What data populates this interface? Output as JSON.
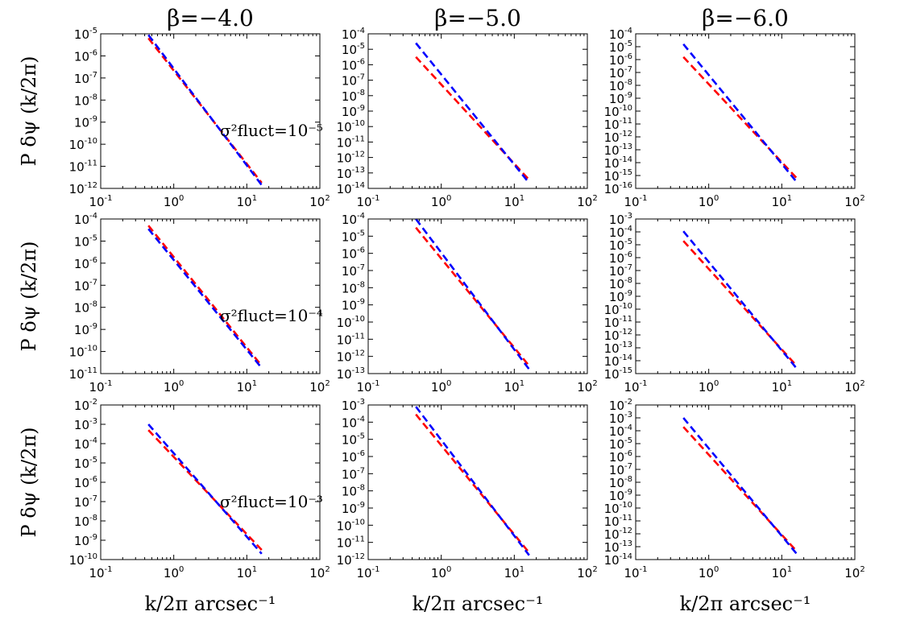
{
  "figure": {
    "column_titles": [
      "β=−4.0",
      "β=−5.0",
      "β=−6.0"
    ],
    "row_annotations": [
      "σ²fluct=10⁻⁵",
      "σ²fluct=10⁻⁴",
      "σ²fluct=10⁻³"
    ],
    "ylabel": "P δψ (k/2π)",
    "xlabel": "k/2π arcsec⁻¹"
  },
  "colors": {
    "red_series": "#ff0000",
    "blue_series": "#0000ff"
  },
  "chart_data": [
    {
      "type": "line",
      "row": 0,
      "col": 0,
      "xscale": "log",
      "yscale": "log",
      "xlim": [
        0.1,
        100
      ],
      "ylim_exp": [
        -12,
        -5
      ],
      "xtick_exps": [
        -1,
        0,
        1,
        2
      ],
      "ytick_exps": [
        -12,
        -11,
        -10,
        -9,
        -8,
        -7,
        -6,
        -5
      ],
      "annotation": "σ²fluct=10⁻⁵",
      "series": [
        {
          "color": "red",
          "x": [
            0.45,
            16
          ],
          "y_exp": [
            -5.2,
            -11.75
          ]
        },
        {
          "color": "blue",
          "x": [
            0.45,
            16
          ],
          "y_exp": [
            -5.05,
            -11.85
          ]
        }
      ]
    },
    {
      "type": "line",
      "row": 0,
      "col": 1,
      "xscale": "log",
      "yscale": "log",
      "xlim": [
        0.1,
        100
      ],
      "ylim_exp": [
        -14,
        -4
      ],
      "xtick_exps": [
        -1,
        0,
        1,
        2
      ],
      "ytick_exps": [
        -14,
        -13,
        -12,
        -11,
        -10,
        -9,
        -8,
        -7,
        -6,
        -5,
        -4
      ],
      "series": [
        {
          "color": "red",
          "x": [
            0.45,
            16
          ],
          "y_exp": [
            -5.5,
            -13.45
          ]
        },
        {
          "color": "blue",
          "x": [
            0.45,
            16
          ],
          "y_exp": [
            -4.6,
            -13.65
          ]
        }
      ]
    },
    {
      "type": "line",
      "row": 0,
      "col": 2,
      "xscale": "log",
      "yscale": "log",
      "xlim": [
        0.1,
        100
      ],
      "ylim_exp": [
        -16,
        -4
      ],
      "xtick_exps": [
        -1,
        0,
        1,
        2
      ],
      "ytick_exps": [
        -16,
        -15,
        -14,
        -13,
        -12,
        -11,
        -10,
        -9,
        -8,
        -7,
        -6,
        -5,
        -4
      ],
      "series": [
        {
          "color": "red",
          "x": [
            0.45,
            16
          ],
          "y_exp": [
            -5.8,
            -15.2
          ]
        },
        {
          "color": "blue",
          "x": [
            0.45,
            16
          ],
          "y_exp": [
            -4.8,
            -15.5
          ]
        }
      ]
    },
    {
      "type": "line",
      "row": 1,
      "col": 0,
      "xscale": "log",
      "yscale": "log",
      "xlim": [
        0.1,
        100
      ],
      "ylim_exp": [
        -11,
        -4
      ],
      "xtick_exps": [
        -1,
        0,
        1,
        2
      ],
      "ytick_exps": [
        -11,
        -10,
        -9,
        -8,
        -7,
        -6,
        -5,
        -4
      ],
      "annotation": "σ²fluct=10⁻⁴",
      "series": [
        {
          "color": "red",
          "x": [
            0.45,
            16
          ],
          "y_exp": [
            -4.3,
            -10.65
          ]
        },
        {
          "color": "blue",
          "x": [
            0.45,
            16
          ],
          "y_exp": [
            -4.45,
            -10.75
          ]
        }
      ]
    },
    {
      "type": "line",
      "row": 1,
      "col": 1,
      "xscale": "log",
      "yscale": "log",
      "xlim": [
        0.1,
        100
      ],
      "ylim_exp": [
        -13,
        -4
      ],
      "xtick_exps": [
        -1,
        0,
        1,
        2
      ],
      "ytick_exps": [
        -13,
        -12,
        -11,
        -10,
        -9,
        -8,
        -7,
        -6,
        -5,
        -4
      ],
      "series": [
        {
          "color": "red",
          "x": [
            0.45,
            16
          ],
          "y_exp": [
            -4.5,
            -12.55
          ]
        },
        {
          "color": "blue",
          "x": [
            0.45,
            16
          ],
          "y_exp": [
            -4.0,
            -12.75
          ]
        }
      ]
    },
    {
      "type": "line",
      "row": 1,
      "col": 2,
      "xscale": "log",
      "yscale": "log",
      "xlim": [
        0.1,
        100
      ],
      "ylim_exp": [
        -15,
        -3
      ],
      "xtick_exps": [
        -1,
        0,
        1,
        2
      ],
      "ytick_exps": [
        -15,
        -14,
        -13,
        -12,
        -11,
        -10,
        -9,
        -8,
        -7,
        -6,
        -5,
        -4,
        -3
      ],
      "series": [
        {
          "color": "red",
          "x": [
            0.45,
            16
          ],
          "y_exp": [
            -4.7,
            -14.4
          ]
        },
        {
          "color": "blue",
          "x": [
            0.45,
            16
          ],
          "y_exp": [
            -3.95,
            -14.6
          ]
        }
      ]
    },
    {
      "type": "line",
      "row": 2,
      "col": 0,
      "xscale": "log",
      "yscale": "log",
      "xlim": [
        0.1,
        100
      ],
      "ylim_exp": [
        -10,
        -2
      ],
      "xtick_exps": [
        -1,
        0,
        1,
        2
      ],
      "ytick_exps": [
        -10,
        -9,
        -8,
        -7,
        -6,
        -5,
        -4,
        -3,
        -2
      ],
      "annotation": "σ²fluct=10⁻³",
      "series": [
        {
          "color": "red",
          "x": [
            0.45,
            16
          ],
          "y_exp": [
            -3.3,
            -9.5
          ]
        },
        {
          "color": "blue",
          "x": [
            0.45,
            16
          ],
          "y_exp": [
            -3.0,
            -9.7
          ]
        }
      ]
    },
    {
      "type": "line",
      "row": 2,
      "col": 1,
      "xscale": "log",
      "yscale": "log",
      "xlim": [
        0.1,
        100
      ],
      "ylim_exp": [
        -12,
        -3
      ],
      "xtick_exps": [
        -1,
        0,
        1,
        2
      ],
      "ytick_exps": [
        -12,
        -11,
        -10,
        -9,
        -8,
        -7,
        -6,
        -5,
        -4,
        -3
      ],
      "series": [
        {
          "color": "red",
          "x": [
            0.45,
            16
          ],
          "y_exp": [
            -3.55,
            -11.6
          ]
        },
        {
          "color": "blue",
          "x": [
            0.45,
            16
          ],
          "y_exp": [
            -3.1,
            -11.75
          ]
        }
      ]
    },
    {
      "type": "line",
      "row": 2,
      "col": 2,
      "xscale": "log",
      "yscale": "log",
      "xlim": [
        0.1,
        100
      ],
      "ylim_exp": [
        -14,
        -2
      ],
      "xtick_exps": [
        -1,
        0,
        1,
        2
      ],
      "ytick_exps": [
        -14,
        -13,
        -12,
        -11,
        -10,
        -9,
        -8,
        -7,
        -6,
        -5,
        -4,
        -3,
        -2
      ],
      "series": [
        {
          "color": "red",
          "x": [
            0.45,
            16
          ],
          "y_exp": [
            -3.7,
            -13.35
          ]
        },
        {
          "color": "blue",
          "x": [
            0.45,
            16
          ],
          "y_exp": [
            -3.0,
            -13.55
          ]
        }
      ]
    }
  ]
}
